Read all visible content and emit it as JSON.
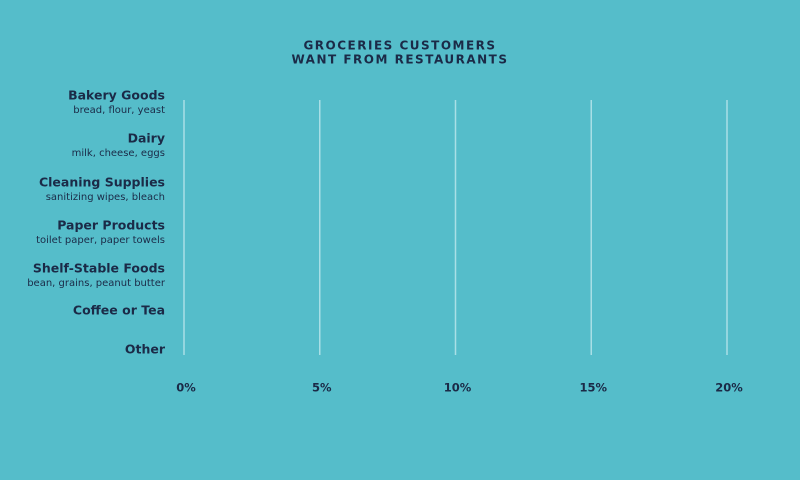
{
  "chart_data": {
    "type": "bar",
    "orientation": "horizontal",
    "title": [
      "GROCERIES CUSTOMERS",
      "WANT FROM RESTAURANTS"
    ],
    "categories": [
      "Bakery Goods",
      "Dairy",
      "Cleaning Supplies",
      "Paper Products",
      "Shelf-Stable Foods",
      "Coffee or Tea",
      "Other"
    ],
    "category_notes": [
      "bread, flour, yeast",
      "milk, cheese, eggs",
      "sanitizing wipes, bleach",
      "toilet paper, paper towels",
      "bean, grains, peanut butter",
      null,
      null
    ],
    "xlim": [
      0,
      20
    ],
    "xticks": [
      {
        "value": 0,
        "label": "0%"
      },
      {
        "value": 5,
        "label": "5%"
      },
      {
        "value": 10,
        "label": "10%"
      },
      {
        "value": 15,
        "label": "15%"
      },
      {
        "value": 20,
        "label": "20%"
      }
    ],
    "grid": true
  }
}
